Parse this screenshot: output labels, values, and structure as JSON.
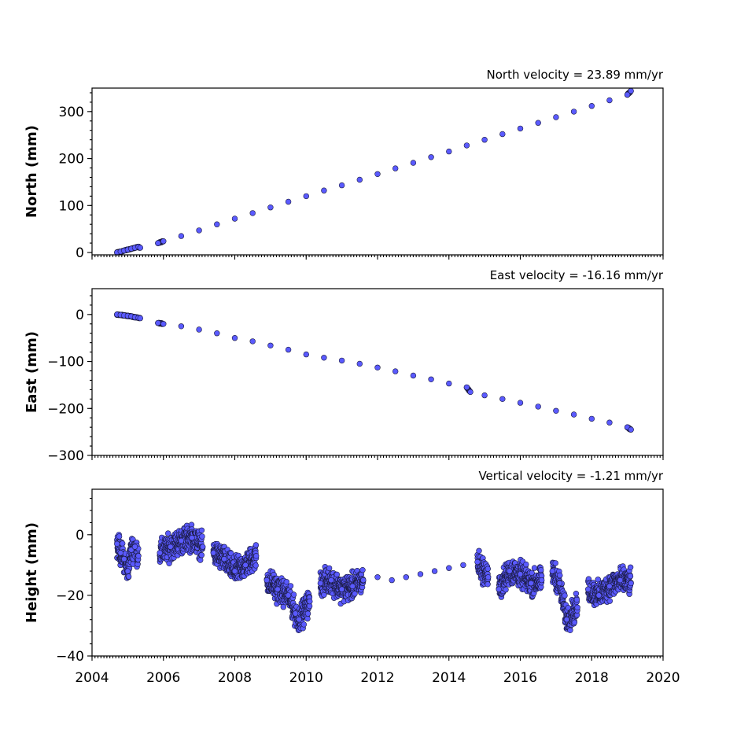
{
  "chart_data": [
    {
      "type": "scatter",
      "id": "north",
      "title": "North velocity = 23.89 mm/yr",
      "ylabel": "North (mm)",
      "xlim": [
        2004,
        2020
      ],
      "ylim": [
        -5,
        350
      ],
      "yticks": [
        0,
        100,
        200,
        300
      ],
      "ytick_labels": [
        "0",
        "100",
        "200",
        "300"
      ],
      "velocity_mm_per_yr": 23.89,
      "series": [
        {
          "name": "",
          "color": "#5a5aff",
          "x": [
            2004.7,
            2004.8,
            2004.9,
            2005.0,
            2005.1,
            2005.2,
            2005.3,
            2005.35,
            2005.85,
            2006.0,
            2006.5,
            2007.0,
            2007.5,
            2008.0,
            2008.5,
            2009.0,
            2009.5,
            2010.0,
            2010.5,
            2011.0,
            2011.5,
            2012.0,
            2012.5,
            2013.0,
            2013.5,
            2014.0,
            2014.5,
            2015.0,
            2015.5,
            2016.0,
            2016.5,
            2017.0,
            2017.5,
            2018.0,
            2018.5,
            2019.0,
            2019.1
          ],
          "y": [
            0,
            2,
            4,
            6,
            8,
            10,
            12,
            10,
            20,
            24,
            35,
            47,
            60,
            72,
            84,
            96,
            108,
            120,
            132,
            143,
            155,
            167,
            179,
            191,
            203,
            215,
            228,
            240,
            252,
            264,
            276,
            288,
            300,
            312,
            324,
            336,
            344
          ]
        }
      ]
    },
    {
      "type": "scatter",
      "id": "east",
      "title": "East velocity = -16.16 mm/yr",
      "ylabel": "East (mm)",
      "xlim": [
        2004,
        2020
      ],
      "ylim": [
        -300,
        55
      ],
      "yticks": [
        0,
        -100,
        -200,
        -300
      ],
      "ytick_labels": [
        "0",
        "−100",
        "−200",
        "−300"
      ],
      "velocity_mm_per_yr": -16.16,
      "series": [
        {
          "name": "",
          "color": "#5a5aff",
          "x": [
            2004.7,
            2004.8,
            2004.9,
            2005.0,
            2005.1,
            2005.2,
            2005.3,
            2005.35,
            2005.85,
            2006.0,
            2006.5,
            2007.0,
            2007.5,
            2008.0,
            2008.5,
            2009.0,
            2009.5,
            2010.0,
            2010.5,
            2011.0,
            2011.5,
            2012.0,
            2012.5,
            2013.0,
            2013.5,
            2014.0,
            2014.5,
            2014.6,
            2015.0,
            2015.5,
            2016.0,
            2016.5,
            2017.0,
            2017.5,
            2018.0,
            2018.5,
            2019.0,
            2019.1
          ],
          "y": [
            0,
            -1,
            -2,
            -3,
            -4,
            -6,
            -7,
            -8,
            -18,
            -20,
            -25,
            -32,
            -40,
            -50,
            -57,
            -66,
            -75,
            -85,
            -92,
            -98,
            -105,
            -113,
            -121,
            -130,
            -138,
            -147,
            -155,
            -165,
            -172,
            -180,
            -188,
            -196,
            -205,
            -213,
            -222,
            -230,
            -240,
            -245
          ]
        }
      ]
    },
    {
      "type": "scatter",
      "id": "height",
      "title": "Vertical velocity = -1.21 mm/yr",
      "ylabel": "Height (mm)",
      "xlabel": "",
      "xlim": [
        2004,
        2020
      ],
      "ylim": [
        -40,
        15
      ],
      "yticks": [
        0,
        -20,
        -40
      ],
      "ytick_labels": [
        "0",
        "−20",
        "−40"
      ],
      "xticks": [
        2004,
        2006,
        2008,
        2010,
        2012,
        2014,
        2016,
        2018,
        2020
      ],
      "xtick_labels": [
        "2004",
        "2006",
        "2008",
        "2010",
        "2012",
        "2014",
        "2016",
        "2018",
        "2020"
      ],
      "velocity_mm_per_yr": -1.21,
      "series": [
        {
          "name": "",
          "color": "#5a5aff",
          "x": [
            2004.7,
            2004.8,
            2004.9,
            2005.0,
            2005.1,
            2005.2,
            2005.3,
            2005.9,
            2006.2,
            2006.5,
            2006.8,
            2007.1,
            2007.4,
            2007.7,
            2008.0,
            2008.3,
            2008.6,
            2008.9,
            2009.2,
            2009.5,
            2009.7,
            2009.8,
            2010.1,
            2010.4,
            2010.7,
            2011.0,
            2011.3,
            2011.6,
            2012.0,
            2012.4,
            2012.8,
            2013.2,
            2013.6,
            2014.0,
            2014.4,
            2014.8,
            2015.1,
            2015.4,
            2015.7,
            2016.0,
            2016.3,
            2016.6,
            2016.9,
            2017.1,
            2017.3,
            2017.6,
            2017.9,
            2018.2,
            2018.5,
            2018.8,
            2019.1
          ],
          "y": [
            -3,
            -6,
            -8,
            -12,
            -5,
            -4,
            -7,
            -6,
            -4,
            -2,
            -1,
            -4,
            -6,
            -8,
            -12,
            -10,
            -7,
            -15,
            -18,
            -20,
            -26,
            -28,
            -22,
            -16,
            -15,
            -18,
            -17,
            -15,
            -14,
            -15,
            -14,
            -13,
            -12,
            -11,
            -10,
            -9,
            -14,
            -18,
            -12,
            -13,
            -16,
            -15,
            -12,
            -16,
            -28,
            -24,
            -18,
            -20,
            -17,
            -15,
            -16
          ]
        }
      ]
    }
  ]
}
